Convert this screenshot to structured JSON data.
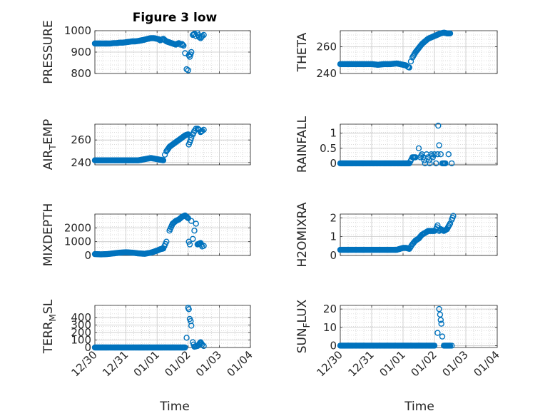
{
  "figure": {
    "title": "Figure 3 low",
    "xlabel": "Time",
    "x_tick_labels": [
      "12/30",
      "12/31",
      "01/01",
      "01/02",
      "01/03",
      "01/04"
    ],
    "x_range_days": [
      0,
      5
    ],
    "marker_color": "#0072BD"
  },
  "chart_data": [
    {
      "type": "scatter",
      "id": "pressure",
      "ylabel": "PRESSURE",
      "ylim": [
        800,
        1000
      ],
      "yticks": [
        800,
        900,
        1000
      ],
      "grid": true,
      "x_ticks": [
        "12/30",
        "12/31",
        "01/01",
        "01/02",
        "01/03",
        "01/04"
      ],
      "points": [
        [
          0.0,
          940
        ],
        [
          0.1,
          940
        ],
        [
          0.2,
          940
        ],
        [
          0.3,
          940
        ],
        [
          0.4,
          940
        ],
        [
          0.5,
          940
        ],
        [
          0.6,
          942
        ],
        [
          0.7,
          942
        ],
        [
          0.8,
          944
        ],
        [
          0.9,
          944
        ],
        [
          1.0,
          946
        ],
        [
          1.1,
          948
        ],
        [
          1.2,
          950
        ],
        [
          1.3,
          950
        ],
        [
          1.4,
          952
        ],
        [
          1.5,
          955
        ],
        [
          1.6,
          958
        ],
        [
          1.7,
          962
        ],
        [
          1.8,
          965
        ],
        [
          1.9,
          965
        ],
        [
          2.0,
          962
        ],
        [
          2.05,
          960
        ],
        [
          2.1,
          955
        ],
        [
          2.15,
          958
        ],
        [
          2.2,
          962
        ],
        [
          2.3,
          950
        ],
        [
          2.4,
          945
        ],
        [
          2.5,
          940
        ],
        [
          2.6,
          935
        ],
        [
          2.7,
          942
        ],
        [
          2.75,
          935
        ],
        [
          2.8,
          938
        ],
        [
          2.85,
          930
        ],
        [
          2.9,
          895
        ],
        [
          2.95,
          820
        ],
        [
          3.0,
          815
        ],
        [
          3.02,
          885
        ],
        [
          3.05,
          878
        ],
        [
          3.1,
          900
        ],
        [
          3.15,
          980
        ],
        [
          3.2,
          985
        ],
        [
          3.25,
          975
        ],
        [
          3.3,
          988
        ],
        [
          3.35,
          970
        ],
        [
          3.4,
          965
        ],
        [
          3.45,
          975
        ],
        [
          3.5,
          980
        ]
      ]
    },
    {
      "type": "scatter",
      "id": "theta",
      "ylabel": "THETA",
      "ylim": [
        240,
        272
      ],
      "yticks": [
        240,
        260
      ],
      "grid": true,
      "x_ticks": [
        "12/30",
        "12/31",
        "01/01",
        "01/02",
        "01/03",
        "01/04"
      ],
      "points": [
        [
          0.0,
          247
        ],
        [
          0.2,
          247
        ],
        [
          0.4,
          247
        ],
        [
          0.6,
          247
        ],
        [
          0.8,
          247
        ],
        [
          1.0,
          247
        ],
        [
          1.2,
          246.5
        ],
        [
          1.4,
          247
        ],
        [
          1.6,
          247
        ],
        [
          1.8,
          247.5
        ],
        [
          2.0,
          246.5
        ],
        [
          2.1,
          246
        ],
        [
          2.15,
          245
        ],
        [
          2.2,
          244.5
        ],
        [
          2.25,
          249
        ],
        [
          2.3,
          252
        ],
        [
          2.4,
          256
        ],
        [
          2.5,
          259
        ],
        [
          2.6,
          262
        ],
        [
          2.7,
          264
        ],
        [
          2.8,
          266
        ],
        [
          2.9,
          267
        ],
        [
          3.0,
          268
        ],
        [
          3.1,
          269
        ],
        [
          3.2,
          270
        ],
        [
          3.3,
          270.5
        ],
        [
          3.4,
          270
        ],
        [
          3.5,
          270
        ]
      ]
    },
    {
      "type": "scatter",
      "id": "air_temp",
      "ylabel": "AIR_TEMP",
      "ylim": [
        238,
        274
      ],
      "yticks": [
        240,
        260
      ],
      "grid": true,
      "x_ticks": [
        "12/30",
        "12/31",
        "01/01",
        "01/02",
        "01/03",
        "01/04"
      ],
      "points": [
        [
          0.0,
          242
        ],
        [
          0.2,
          242
        ],
        [
          0.4,
          242
        ],
        [
          0.6,
          242
        ],
        [
          0.8,
          242
        ],
        [
          1.0,
          242
        ],
        [
          1.2,
          242
        ],
        [
          1.4,
          242
        ],
        [
          1.6,
          243
        ],
        [
          1.8,
          244
        ],
        [
          2.0,
          243
        ],
        [
          2.1,
          242.5
        ],
        [
          2.2,
          242
        ],
        [
          2.25,
          247
        ],
        [
          2.3,
          250
        ],
        [
          2.4,
          254
        ],
        [
          2.5,
          256
        ],
        [
          2.6,
          258
        ],
        [
          2.7,
          260
        ],
        [
          2.8,
          262
        ],
        [
          2.9,
          264
        ],
        [
          3.0,
          265
        ],
        [
          3.02,
          256
        ],
        [
          3.05,
          258
        ],
        [
          3.1,
          262
        ],
        [
          3.15,
          265
        ],
        [
          3.2,
          268
        ],
        [
          3.25,
          270
        ],
        [
          3.3,
          270
        ],
        [
          3.35,
          269
        ],
        [
          3.4,
          267
        ],
        [
          3.45,
          268
        ],
        [
          3.5,
          269
        ]
      ]
    },
    {
      "type": "scatter",
      "id": "rainfall",
      "ylabel": "RAINFALL",
      "ylim": [
        -0.05,
        1.3
      ],
      "yticks": [
        0,
        0.5,
        1
      ],
      "grid": true,
      "x_ticks": [
        "12/30",
        "12/31",
        "01/01",
        "01/02",
        "01/03",
        "01/04"
      ],
      "points": [
        [
          0.0,
          0
        ],
        [
          0.2,
          0
        ],
        [
          0.4,
          0
        ],
        [
          0.6,
          0
        ],
        [
          0.8,
          0
        ],
        [
          1.0,
          0
        ],
        [
          1.2,
          0
        ],
        [
          1.4,
          0
        ],
        [
          1.6,
          0
        ],
        [
          1.8,
          0
        ],
        [
          2.0,
          0
        ],
        [
          2.2,
          0
        ],
        [
          2.3,
          0.2
        ],
        [
          2.4,
          0.2
        ],
        [
          2.5,
          0.5
        ],
        [
          2.55,
          0.2
        ],
        [
          2.6,
          0.3
        ],
        [
          2.65,
          0.2
        ],
        [
          2.7,
          0
        ],
        [
          2.75,
          0.3
        ],
        [
          2.8,
          0.2
        ],
        [
          2.85,
          0
        ],
        [
          2.9,
          0.3
        ],
        [
          2.95,
          0.2
        ],
        [
          3.0,
          0.3
        ],
        [
          3.05,
          0
        ],
        [
          3.1,
          0.3
        ],
        [
          3.12,
          1.25
        ],
        [
          3.15,
          0.6
        ],
        [
          3.2,
          0.3
        ],
        [
          3.25,
          0
        ],
        [
          3.35,
          0
        ],
        [
          3.45,
          0.3
        ],
        [
          3.55,
          0
        ]
      ]
    },
    {
      "type": "scatter",
      "id": "mixdepth",
      "ylabel": "MIXDEPTH",
      "ylim": [
        0,
        3000
      ],
      "yticks": [
        0,
        1000,
        2000
      ],
      "grid": true,
      "x_ticks": [
        "12/30",
        "12/31",
        "01/01",
        "01/02",
        "01/03",
        "01/04"
      ],
      "points": [
        [
          0.0,
          100
        ],
        [
          0.2,
          80
        ],
        [
          0.4,
          100
        ],
        [
          0.6,
          150
        ],
        [
          0.8,
          200
        ],
        [
          1.0,
          230
        ],
        [
          1.2,
          200
        ],
        [
          1.4,
          150
        ],
        [
          1.6,
          120
        ],
        [
          1.8,
          200
        ],
        [
          2.0,
          350
        ],
        [
          2.1,
          450
        ],
        [
          2.2,
          500
        ],
        [
          2.3,
          1000
        ],
        [
          2.4,
          1800
        ],
        [
          2.5,
          2300
        ],
        [
          2.6,
          2500
        ],
        [
          2.7,
          2600
        ],
        [
          2.8,
          2800
        ],
        [
          2.9,
          2900
        ],
        [
          3.0,
          2700
        ],
        [
          3.02,
          1000
        ],
        [
          3.05,
          800
        ],
        [
          3.1,
          2500
        ],
        [
          3.15,
          1200
        ],
        [
          3.2,
          1800
        ],
        [
          3.25,
          2300
        ],
        [
          3.3,
          800
        ],
        [
          3.4,
          900
        ],
        [
          3.45,
          650
        ],
        [
          3.5,
          700
        ]
      ]
    },
    {
      "type": "scatter",
      "id": "h2omixra",
      "ylabel": "H2OMIXRA",
      "ylim": [
        0,
        2.2
      ],
      "yticks": [
        0,
        1,
        2
      ],
      "grid": true,
      "x_ticks": [
        "12/30",
        "12/31",
        "01/01",
        "01/02",
        "01/03",
        "01/04"
      ],
      "points": [
        [
          0.0,
          0.3
        ],
        [
          0.2,
          0.3
        ],
        [
          0.4,
          0.3
        ],
        [
          0.6,
          0.3
        ],
        [
          0.8,
          0.3
        ],
        [
          1.0,
          0.3
        ],
        [
          1.2,
          0.3
        ],
        [
          1.4,
          0.3
        ],
        [
          1.6,
          0.3
        ],
        [
          1.8,
          0.3
        ],
        [
          2.0,
          0.4
        ],
        [
          2.1,
          0.4
        ],
        [
          2.2,
          0.35
        ],
        [
          2.3,
          0.6
        ],
        [
          2.4,
          0.8
        ],
        [
          2.5,
          0.9
        ],
        [
          2.6,
          1.1
        ],
        [
          2.7,
          1.2
        ],
        [
          2.8,
          1.3
        ],
        [
          2.9,
          1.3
        ],
        [
          3.0,
          1.3
        ],
        [
          3.05,
          1.4
        ],
        [
          3.1,
          1.6
        ],
        [
          3.15,
          1.3
        ],
        [
          3.2,
          1.4
        ],
        [
          3.3,
          1.3
        ],
        [
          3.4,
          1.4
        ],
        [
          3.5,
          1.7
        ],
        [
          3.55,
          1.9
        ],
        [
          3.6,
          2.1
        ]
      ]
    },
    {
      "type": "scatter",
      "id": "terr_msl",
      "ylabel": "TERR_MSL",
      "ylim": [
        0,
        560
      ],
      "yticks": [
        0,
        100,
        200,
        300,
        400
      ],
      "grid": true,
      "x_ticks": [
        "12/30",
        "12/31",
        "01/01",
        "01/02",
        "01/03",
        "01/04"
      ],
      "points": [
        [
          0.0,
          0
        ],
        [
          0.2,
          0
        ],
        [
          0.4,
          0
        ],
        [
          0.6,
          0
        ],
        [
          0.8,
          0
        ],
        [
          1.0,
          0
        ],
        [
          1.2,
          0
        ],
        [
          1.4,
          0
        ],
        [
          1.6,
          0
        ],
        [
          1.8,
          0
        ],
        [
          2.0,
          0
        ],
        [
          2.2,
          0
        ],
        [
          2.4,
          0
        ],
        [
          2.6,
          0
        ],
        [
          2.8,
          0
        ],
        [
          2.9,
          0
        ],
        [
          2.95,
          130
        ],
        [
          3.0,
          530
        ],
        [
          3.02,
          510
        ],
        [
          3.05,
          380
        ],
        [
          3.08,
          350
        ],
        [
          3.1,
          290
        ],
        [
          3.15,
          70
        ],
        [
          3.2,
          10
        ],
        [
          3.3,
          20
        ],
        [
          3.4,
          70
        ],
        [
          3.45,
          40
        ],
        [
          3.5,
          20
        ]
      ]
    },
    {
      "type": "scatter",
      "id": "sun_flux",
      "ylabel": "SUN_FLUX",
      "ylim": [
        -1,
        22
      ],
      "yticks": [
        0,
        10,
        20
      ],
      "grid": true,
      "x_ticks": [
        "12/30",
        "12/31",
        "01/01",
        "01/02",
        "01/03",
        "01/04"
      ],
      "points": [
        [
          0.0,
          0
        ],
        [
          0.2,
          0
        ],
        [
          0.4,
          0
        ],
        [
          0.6,
          0
        ],
        [
          0.8,
          0
        ],
        [
          1.0,
          0
        ],
        [
          1.2,
          0
        ],
        [
          1.4,
          0
        ],
        [
          1.6,
          0
        ],
        [
          1.8,
          0
        ],
        [
          2.0,
          0
        ],
        [
          2.2,
          0
        ],
        [
          2.4,
          0
        ],
        [
          2.6,
          0
        ],
        [
          2.8,
          0
        ],
        [
          3.0,
          0
        ],
        [
          3.1,
          7
        ],
        [
          3.15,
          20
        ],
        [
          3.18,
          17
        ],
        [
          3.2,
          14
        ],
        [
          3.22,
          12
        ],
        [
          3.25,
          5
        ],
        [
          3.3,
          0
        ],
        [
          3.4,
          0
        ],
        [
          3.5,
          0
        ],
        [
          3.55,
          0
        ]
      ]
    }
  ]
}
